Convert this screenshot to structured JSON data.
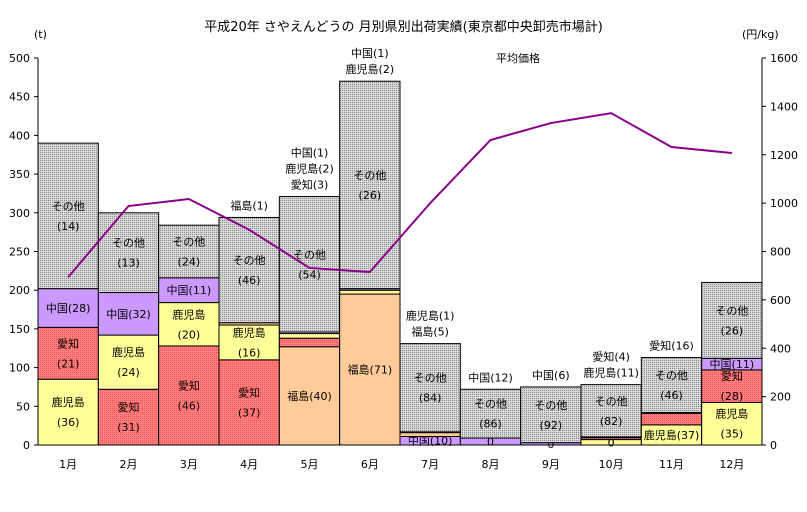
{
  "chart_data": {
    "type": "bar",
    "title": "平成20年 さやえんどうの 月別県別出荷実績(東京都中央卸売市場計)",
    "ylabel": "(t)",
    "y2label": "(円/kg)",
    "ylim": [
      0,
      500
    ],
    "yticks": [
      0,
      50,
      100,
      150,
      200,
      250,
      300,
      350,
      400,
      450,
      500
    ],
    "y2lim": [
      0,
      1600
    ],
    "y2ticks": [
      0,
      200,
      400,
      600,
      800,
      1000,
      1200,
      1400,
      1600
    ],
    "categories": [
      "1月",
      "2月",
      "3月",
      "4月",
      "5月",
      "6月",
      "7月",
      "8月",
      "9月",
      "10月",
      "11月",
      "12月"
    ],
    "colors": {
      "鹿児島": "#ffff99",
      "愛知": "#ff8080",
      "中国": "#cc99ff",
      "福島": "#ffcc99",
      "その他": "#c0c0c0",
      "line": "#8b008b"
    },
    "stacks": [
      [
        {
          "s": "鹿児島",
          "v": 85,
          "l": [
            "鹿児島",
            "(36)"
          ]
        },
        {
          "s": "愛知",
          "v": 67,
          "l": [
            "愛知",
            "(21)"
          ]
        },
        {
          "s": "中国",
          "v": 50,
          "l": [
            "中国(28)"
          ]
        },
        {
          "s": "その他",
          "v": 188,
          "l": [
            "その他",
            "(14)"
          ]
        }
      ],
      [
        {
          "s": "愛知",
          "v": 72,
          "l": [
            "愛知",
            "(31)"
          ]
        },
        {
          "s": "鹿児島",
          "v": 70,
          "l": [
            "鹿児島",
            "(24)"
          ]
        },
        {
          "s": "中国",
          "v": 55,
          "l": [
            "中国(32)"
          ]
        },
        {
          "s": "その他",
          "v": 103,
          "l": [
            "その他",
            "(13)"
          ]
        }
      ],
      [
        {
          "s": "愛知",
          "v": 128,
          "l": [
            "愛知",
            "(46)"
          ]
        },
        {
          "s": "鹿児島",
          "v": 56,
          "l": [
            "鹿児島",
            "(20)"
          ]
        },
        {
          "s": "中国",
          "v": 32,
          "l": [
            "中国(11)"
          ]
        },
        {
          "s": "その他",
          "v": 68,
          "l": [
            "その他",
            "(24)"
          ]
        }
      ],
      [
        {
          "s": "愛知",
          "v": 110,
          "l": [
            "愛知",
            "(37)"
          ]
        },
        {
          "s": "鹿児島",
          "v": 45,
          "l": [
            "鹿児島",
            "(16)"
          ]
        },
        {
          "s": "福島",
          "v": 3,
          "l": []
        },
        {
          "s": "その他",
          "v": 136,
          "l": [
            "その他",
            "(46)"
          ]
        }
      ],
      [
        {
          "s": "福島",
          "v": 127,
          "l": [
            "福島(40)"
          ]
        },
        {
          "s": "愛知",
          "v": 11,
          "l": []
        },
        {
          "s": "鹿児島",
          "v": 6,
          "l": []
        },
        {
          "s": "中国",
          "v": 2,
          "l": []
        },
        {
          "s": "その他",
          "v": 175,
          "l": [
            "その他",
            "(54)"
          ]
        }
      ],
      [
        {
          "s": "福島",
          "v": 195,
          "l": [
            "福島(71)"
          ]
        },
        {
          "s": "鹿児島",
          "v": 5,
          "l": []
        },
        {
          "s": "中国",
          "v": 2,
          "l": []
        },
        {
          "s": "その他",
          "v": 268,
          "l": [
            "その他",
            "(26)"
          ]
        }
      ],
      [
        {
          "s": "中国",
          "v": 11,
          "l": [
            "中国(10)"
          ]
        },
        {
          "s": "福島",
          "v": 5,
          "l": []
        },
        {
          "s": "鹿児島",
          "v": 1,
          "l": []
        },
        {
          "s": "その他",
          "v": 114,
          "l": [
            "その他",
            "(84)"
          ]
        }
      ],
      [
        {
          "s": "中国",
          "v": 9,
          "l": [
            "0"
          ]
        },
        {
          "s": "その他",
          "v": 63,
          "l": [
            "その他",
            "(86)"
          ]
        }
      ],
      [
        {
          "s": "中国",
          "v": 3,
          "l": [
            "0"
          ]
        },
        {
          "s": "その他",
          "v": 72,
          "l": [
            "その他",
            "(92)"
          ]
        }
      ],
      [
        {
          "s": "鹿児島",
          "v": 7,
          "l": [
            "0"
          ]
        },
        {
          "s": "愛知",
          "v": 2.5,
          "l": []
        },
        {
          "s": "中国",
          "v": 1,
          "l": []
        },
        {
          "s": "その他",
          "v": 67.5,
          "l": [
            "その他",
            "(82)"
          ]
        }
      ],
      [
        {
          "s": "鹿児島",
          "v": 26,
          "l": [
            "鹿児島(37)"
          ]
        },
        {
          "s": "愛知",
          "v": 15,
          "l": []
        },
        {
          "s": "中国",
          "v": 1,
          "l": []
        },
        {
          "s": "その他",
          "v": 71,
          "l": [
            "その他",
            "(46)"
          ]
        }
      ],
      [
        {
          "s": "鹿児島",
          "v": 55,
          "l": [
            "鹿児島",
            "(35)"
          ]
        },
        {
          "s": "愛知",
          "v": 42,
          "l": [
            "愛知",
            "(28)"
          ]
        },
        {
          "s": "中国",
          "v": 15,
          "l": [
            "中国(11)"
          ]
        },
        {
          "s": "その他",
          "v": 98,
          "l": [
            "その他",
            "(26)"
          ]
        }
      ]
    ],
    "annotations": [
      [],
      [],
      [],
      [
        "福島(1)"
      ],
      [
        "中国(1)",
        "鹿児島(2)",
        "愛知(3)"
      ],
      [
        "中国(1)",
        "鹿児島(2)"
      ],
      [
        "鹿児島(1)",
        "福島(5)"
      ],
      [
        "中国(12)"
      ],
      [
        "中国(6)"
      ],
      [
        "愛知(4)",
        "鹿児島(11)"
      ],
      [
        "愛知(16)"
      ],
      []
    ],
    "line": {
      "name": "平均価格",
      "values": [
        694,
        988,
        1017,
        890,
        732,
        715,
        1000,
        1261,
        1331,
        1372,
        1232,
        1207
      ]
    }
  }
}
